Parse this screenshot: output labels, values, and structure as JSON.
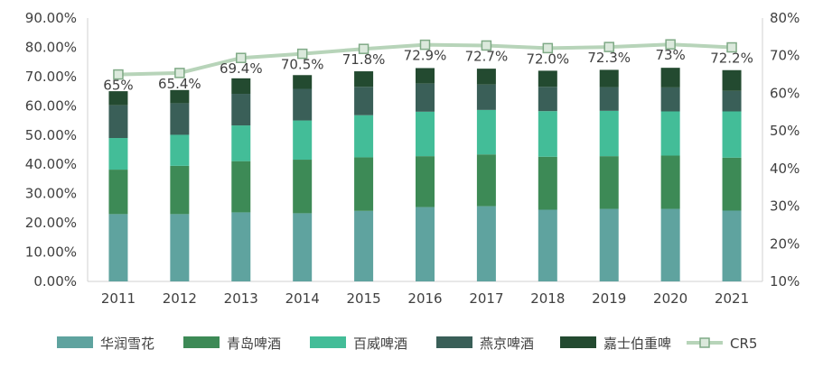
{
  "chart_data": {
    "type": "bar",
    "stacked": true,
    "categories": [
      "2011",
      "2012",
      "2013",
      "2014",
      "2015",
      "2016",
      "2017",
      "2018",
      "2019",
      "2020",
      "2021"
    ],
    "series": [
      {
        "name": "华润雪花",
        "color": "#5fa39f",
        "values": [
          23.0,
          23.0,
          23.6,
          23.3,
          24.1,
          25.4,
          25.7,
          24.5,
          24.8,
          24.8,
          24.2
        ]
      },
      {
        "name": "青岛啤酒",
        "color": "#3d8a56",
        "values": [
          15.2,
          16.5,
          17.5,
          18.3,
          18.3,
          17.4,
          17.7,
          18.1,
          18.0,
          18.2,
          18.1
        ]
      },
      {
        "name": "百威啤酒",
        "color": "#43bd98",
        "values": [
          10.8,
          10.6,
          12.2,
          13.4,
          14.4,
          15.2,
          15.2,
          15.6,
          15.5,
          15.1,
          15.8
        ]
      },
      {
        "name": "燕京啤酒",
        "color": "#3a5f58",
        "values": [
          11.2,
          10.8,
          10.8,
          10.8,
          9.7,
          9.6,
          8.7,
          8.3,
          8.1,
          8.2,
          7.0
        ]
      },
      {
        "name": "嘉士伯重啤",
        "color": "#234a30",
        "values": [
          4.8,
          4.5,
          5.3,
          4.7,
          5.3,
          5.3,
          5.4,
          5.5,
          5.9,
          6.7,
          7.1
        ]
      }
    ],
    "line_series": {
      "name": "CR5",
      "color": "#b7d4b9",
      "axis": "right",
      "values": [
        65.0,
        65.4,
        69.4,
        70.5,
        71.8,
        72.9,
        72.7,
        72.0,
        72.3,
        73.0,
        72.2
      ],
      "labels": [
        "65%",
        "65.4%",
        "69.4%",
        "70.5%",
        "71.8%",
        "72.9%",
        "72.7%",
        "72.0%",
        "72.3%",
        "73%",
        "72.2%"
      ]
    },
    "y_left": {
      "min": 0,
      "max": 90,
      "step": 10,
      "ticks": [
        "0.00%",
        "10.00%",
        "20.00%",
        "30.00%",
        "40.00%",
        "50.00%",
        "60.00%",
        "70.00%",
        "80.00%",
        "90.00%"
      ]
    },
    "y_right": {
      "min": 10,
      "max": 80,
      "step": 10,
      "ticks": [
        "10%",
        "20%",
        "30%",
        "40%",
        "50%",
        "60%",
        "70%",
        "80%"
      ]
    },
    "grid": false,
    "legend_position": "bottom"
  }
}
